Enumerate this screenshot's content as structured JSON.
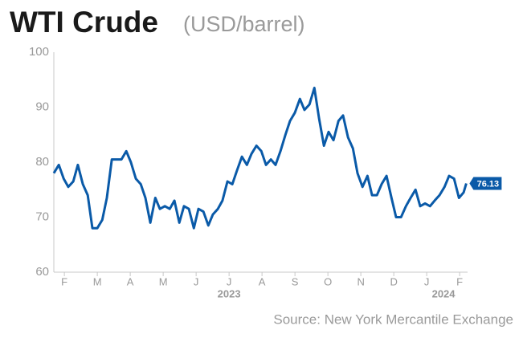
{
  "chart_data": {
    "type": "line",
    "title": "WTI Crude",
    "subtitle": "(USD/barrel)",
    "source": "Source: New York Mercantile Exchange",
    "x": [
      0.68,
      0.83,
      0.98,
      1.12,
      1.27,
      1.41,
      1.56,
      1.71,
      1.85,
      2.0,
      2.15,
      2.29,
      2.44,
      2.59,
      2.73,
      2.88,
      3.02,
      3.17,
      3.32,
      3.46,
      3.61,
      3.76,
      3.9,
      4.05,
      4.2,
      4.34,
      4.49,
      4.63,
      4.78,
      4.93,
      5.07,
      5.22,
      5.37,
      5.51,
      5.66,
      5.8,
      5.95,
      6.1,
      6.24,
      6.39,
      6.54,
      6.68,
      6.83,
      6.98,
      7.12,
      7.27,
      7.41,
      7.56,
      7.71,
      7.85,
      8.0,
      8.15,
      8.29,
      8.44,
      8.59,
      8.73,
      8.88,
      9.02,
      9.17,
      9.32,
      9.46,
      9.61,
      9.76,
      9.9,
      10.05,
      10.2,
      10.34,
      10.49,
      10.63,
      10.78,
      10.93,
      11.07,
      11.22,
      11.37,
      11.51,
      11.66,
      11.8,
      11.95,
      12.1,
      12.24,
      12.39,
      12.54,
      12.68,
      12.83,
      12.98,
      13.12,
      13.2
    ],
    "series": [
      {
        "name": "WTI Crude",
        "color": "#0a5aa8",
        "values": [
          78,
          79.5,
          77,
          75.5,
          76.5,
          79.5,
          76,
          74,
          68,
          68,
          69.5,
          73.5,
          80.5,
          80.5,
          80.5,
          82,
          80,
          77,
          76,
          73.5,
          69,
          73.5,
          71.5,
          72,
          71.5,
          73,
          69,
          72,
          71.5,
          68,
          71.5,
          71,
          68.5,
          70.5,
          71.5,
          73,
          76.5,
          76,
          78.5,
          81,
          79.5,
          81.5,
          83,
          82,
          79.5,
          80.5,
          79.5,
          82,
          85,
          87.5,
          89,
          91.5,
          89.5,
          90.5,
          93.5,
          88,
          83,
          85.5,
          84,
          87.5,
          88.5,
          84.5,
          82.5,
          78,
          75.5,
          77.5,
          74,
          74,
          76,
          77.5,
          73.5,
          70,
          70,
          72,
          73.5,
          75,
          72,
          72.5,
          72,
          73,
          74,
          75.5,
          77.5,
          77,
          73.5,
          74.5,
          76.13
        ]
      }
    ],
    "xlim": [
      0.68,
      13.24
    ],
    "xticks": [
      {
        "value": 1,
        "label": "F"
      },
      {
        "value": 2,
        "label": "M"
      },
      {
        "value": 3,
        "label": "A"
      },
      {
        "value": 4,
        "label": "M"
      },
      {
        "value": 5,
        "label": "J"
      },
      {
        "value": 6,
        "label": "J"
      },
      {
        "value": 7,
        "label": "A"
      },
      {
        "value": 8,
        "label": "S"
      },
      {
        "value": 9,
        "label": "O"
      },
      {
        "value": 10,
        "label": "N"
      },
      {
        "value": 11,
        "label": "D"
      },
      {
        "value": 12,
        "label": "J"
      },
      {
        "value": 13,
        "label": "F"
      }
    ],
    "year_labels": [
      {
        "value": 6,
        "label": "2023"
      },
      {
        "value": 12.51,
        "label": "2024"
      }
    ],
    "ylim": [
      60,
      100
    ],
    "yticks": [
      60,
      70,
      80,
      90,
      100
    ],
    "grid": false
  }
}
